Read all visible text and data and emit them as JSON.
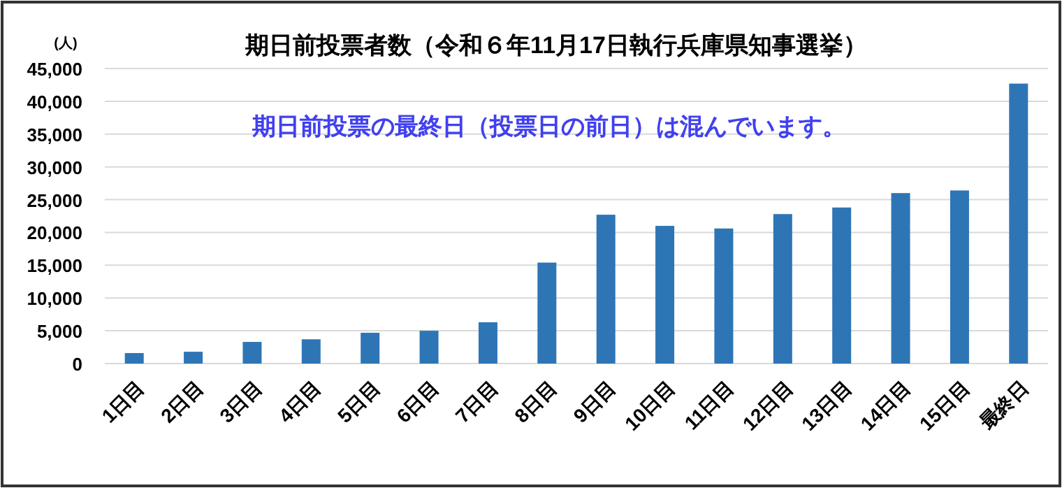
{
  "chart_data": {
    "type": "bar",
    "title": "期日前投票者数（令和６年11月17日執行兵庫県知事選挙）",
    "ylabel": "(人)",
    "annotations": [
      "期日前投票の最終日（投票日の前日）は混んでいます。"
    ],
    "categories": [
      "1日目",
      "2日目",
      "3日目",
      "4日目",
      "5日目",
      "6日目",
      "7日目",
      "8日目",
      "9日目",
      "10日目",
      "11日目",
      "12日目",
      "13日目",
      "14日目",
      "15日目",
      "最終日"
    ],
    "values": [
      1600,
      1800,
      3300,
      3700,
      4700,
      5000,
      6300,
      15400,
      22700,
      21000,
      20600,
      22800,
      23800,
      26000,
      26400,
      42700
    ],
    "color": "#2e75b6",
    "ylim": [
      0,
      45000
    ],
    "yticks": [
      {
        "value": 0,
        "label": "0"
      },
      {
        "value": 5000,
        "label": "5,000"
      },
      {
        "value": 10000,
        "label": "10,000"
      },
      {
        "value": 15000,
        "label": "15,000"
      },
      {
        "value": 20000,
        "label": "20,000"
      },
      {
        "value": 25000,
        "label": "25,000"
      },
      {
        "value": 30000,
        "label": "30,000"
      },
      {
        "value": 35000,
        "label": "35,000"
      },
      {
        "value": 40000,
        "label": "40,000"
      },
      {
        "value": 45000,
        "label": "45,000"
      }
    ],
    "grid": "y"
  }
}
